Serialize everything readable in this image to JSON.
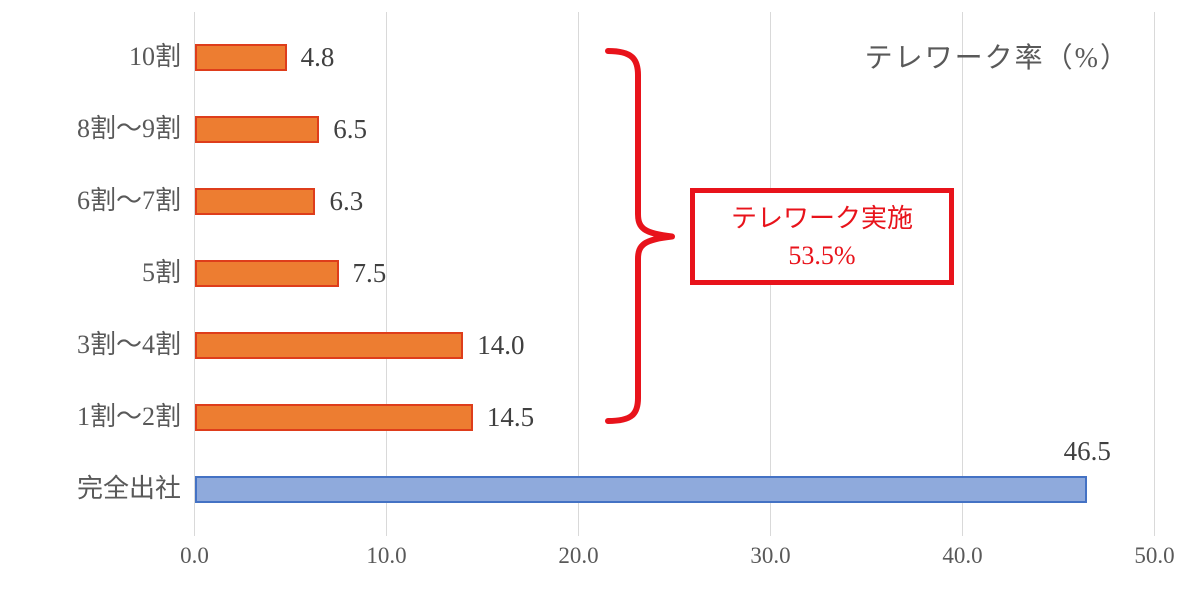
{
  "chart_data": {
    "type": "bar",
    "orientation": "horizontal",
    "title": "テレワーク率（%）",
    "categories": [
      "10割",
      "8割〜9割",
      "6割〜7割",
      "5割",
      "3割〜4割",
      "1割〜2割",
      "完全出社"
    ],
    "values": [
      4.8,
      6.5,
      6.3,
      7.5,
      14.0,
      14.5,
      46.5
    ],
    "value_labels": [
      "4.8",
      "6.5",
      "6.3",
      "7.5",
      "14.0",
      "14.5",
      "46.5"
    ],
    "xlim": [
      0,
      50
    ],
    "x_ticks": [
      0,
      10,
      20,
      30,
      40,
      50
    ],
    "x_tick_labels": [
      "0.0",
      "10.0",
      "20.0",
      "30.0",
      "40.0",
      "50.0"
    ],
    "grid": "vertical-only",
    "legend": "none",
    "series_colors": {
      "telework_fill": "#ED7D31",
      "telework_border": "#DE3D1B",
      "office_fill": "#8FAADC",
      "office_border": "#4472C4"
    },
    "gridline_color": "#D9D9D9",
    "text_colors": {
      "title": "#595959",
      "category": "#595959",
      "value": "#404040",
      "tick": "#595959"
    },
    "annotation": {
      "label_line1": "テレワーク実施",
      "label_line2": "53.5%",
      "color": "#E8131B",
      "grouped_categories": [
        "10割",
        "8割〜9割",
        "6割〜7割",
        "5割",
        "3割〜4割",
        "1割〜2割"
      ]
    }
  }
}
